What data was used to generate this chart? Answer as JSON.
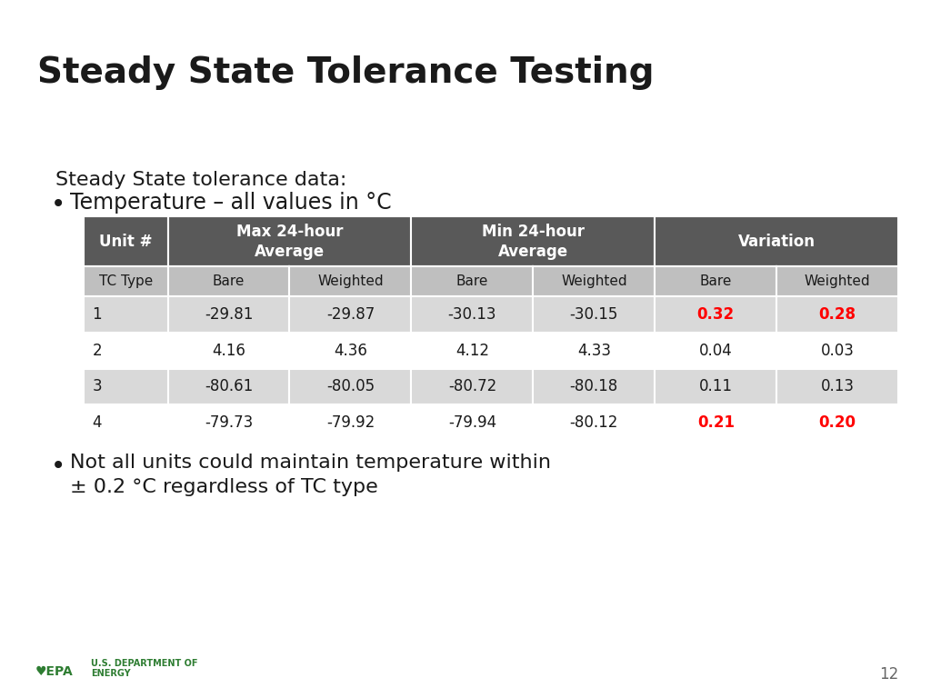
{
  "title": "Steady State Tolerance Testing",
  "subtitle": "Steady State tolerance data:",
  "bullet1": "Temperature – all values in °C",
  "bullet2": "Not all units could maintain temperature within\n± 0.2 °C regardless of TC type",
  "title_color": "#1a1a1a",
  "header_bg": "#595959",
  "header_fg": "#ffffff",
  "subheader_bg": "#bfbfbf",
  "subheader_fg": "#1a1a1a",
  "row_bg_even": "#ffffff",
  "row_bg_odd": "#d9d9d9",
  "row_fg": "#1a1a1a",
  "highlight_color": "#ff0000",
  "accent_line_color": "#00b0f0",
  "page_number": "12",
  "col_headers_sub": [
    "TC Type",
    "Bare",
    "Weighted",
    "Bare",
    "Weighted",
    "Bare",
    "Weighted"
  ],
  "rows": [
    {
      "unit": "1",
      "max_bare": "-29.81",
      "max_weighted": "-29.87",
      "min_bare": "-30.13",
      "min_weighted": "-30.15",
      "var_bare": "0.32",
      "var_weighted": "0.28",
      "highlight": true
    },
    {
      "unit": "2",
      "max_bare": "4.16",
      "max_weighted": "4.36",
      "min_bare": "4.12",
      "min_weighted": "4.33",
      "var_bare": "0.04",
      "var_weighted": "0.03",
      "highlight": false
    },
    {
      "unit": "3",
      "max_bare": "-80.61",
      "max_weighted": "-80.05",
      "min_bare": "-80.72",
      "min_weighted": "-80.18",
      "var_bare": "0.11",
      "var_weighted": "0.13",
      "highlight": false
    },
    {
      "unit": "4",
      "max_bare": "-79.73",
      "max_weighted": "-79.92",
      "min_bare": "-79.94",
      "min_weighted": "-80.12",
      "var_bare": "0.21",
      "var_weighted": "0.20",
      "highlight": true
    }
  ]
}
